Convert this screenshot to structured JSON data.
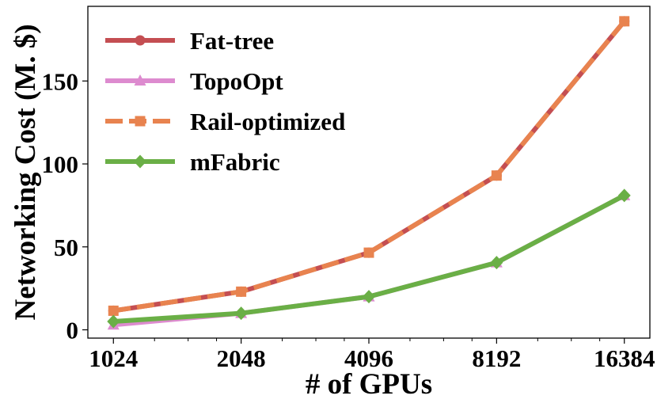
{
  "chart_data": {
    "type": "line",
    "title": "",
    "xlabel": "# of GPUs",
    "ylabel": "Networking Cost (M. $)",
    "x_scale": "log2",
    "x": [
      1024,
      2048,
      4096,
      8192,
      16384
    ],
    "x_tick_labels": [
      "1024",
      "2048",
      "4096",
      "8192",
      "16384"
    ],
    "y_ticks": [
      0,
      50,
      100,
      150
    ],
    "y_tick_labels": [
      "0",
      "50",
      "100",
      "150"
    ],
    "ylim": [
      -5,
      195
    ],
    "grid": false,
    "legend_position": "upper-left",
    "series": [
      {
        "name": "Fat-tree",
        "color": "#c44e52",
        "marker": "circle",
        "linestyle": "solid",
        "values": [
          11.5,
          23,
          46.5,
          93,
          186
        ]
      },
      {
        "name": "TopoOpt",
        "color": "#dd8bcf",
        "marker": "triangle",
        "linestyle": "solid",
        "values": [
          3,
          10,
          20,
          40.5,
          81
        ]
      },
      {
        "name": "Rail-optimized",
        "color": "#e8834f",
        "marker": "square",
        "linestyle": "dashed",
        "values": [
          11.5,
          23,
          46.5,
          93,
          186
        ]
      },
      {
        "name": "mFabric",
        "color": "#6aaf46",
        "marker": "diamond",
        "linestyle": "solid",
        "values": [
          5,
          10,
          20,
          40.5,
          81
        ]
      }
    ]
  }
}
